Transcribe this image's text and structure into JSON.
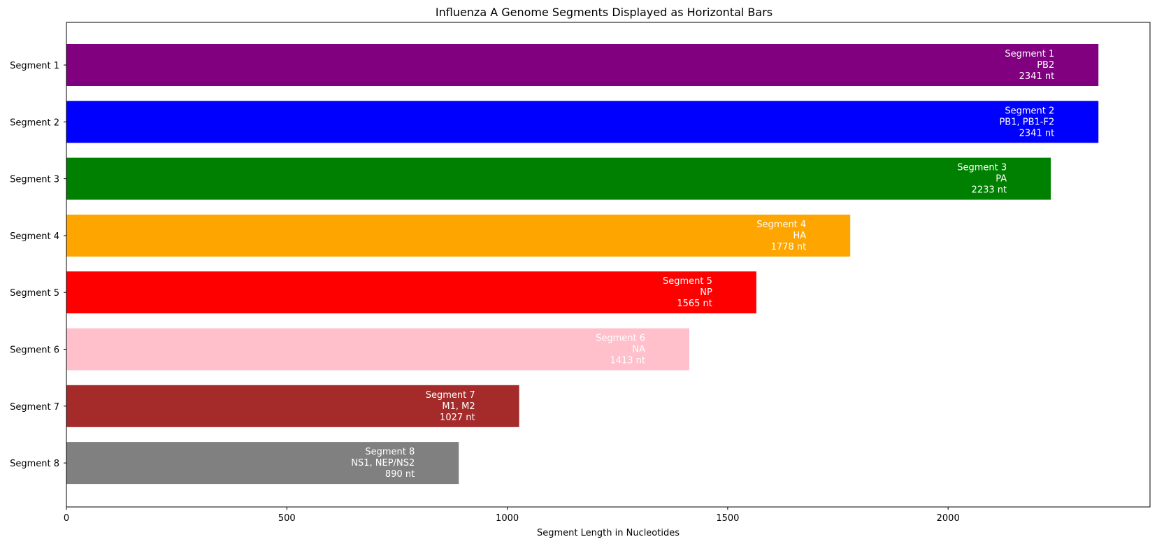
{
  "chart_data": {
    "type": "bar",
    "orientation": "horizontal",
    "title": "Influenza A Genome Segments Displayed as Horizontal Bars",
    "xlabel": "Segment Length in Nucleotides",
    "ylabel": "",
    "xlim": [
      0,
      2458
    ],
    "xticks": [
      0,
      500,
      1000,
      1500,
      2000
    ],
    "grid": false,
    "categories": [
      "Segment 1",
      "Segment 2",
      "Segment 3",
      "Segment 4",
      "Segment 5",
      "Segment 6",
      "Segment 7",
      "Segment 8"
    ],
    "values": [
      2341,
      2341,
      2233,
      1778,
      1565,
      1413,
      1027,
      890
    ],
    "colors": [
      "#800080",
      "#0000ff",
      "#008000",
      "#ffa500",
      "#ff0000",
      "#ffc0cb",
      "#a52a2a",
      "#808080"
    ],
    "bar_labels": [
      [
        "Segment 1",
        "PB2",
        "2341 nt"
      ],
      [
        "Segment 2",
        "PB1, PB1-F2",
        "2341 nt"
      ],
      [
        "Segment 3",
        "PA",
        "2233 nt"
      ],
      [
        "Segment 4",
        "HA",
        "1778 nt"
      ],
      [
        "Segment 5",
        "NP",
        "1565 nt"
      ],
      [
        "Segment 6",
        "NA",
        "1413 nt"
      ],
      [
        "Segment 7",
        "M1, M2",
        "1027 nt"
      ],
      [
        "Segment 8",
        "NS1, NEP/NS2",
        "890 nt"
      ]
    ]
  }
}
